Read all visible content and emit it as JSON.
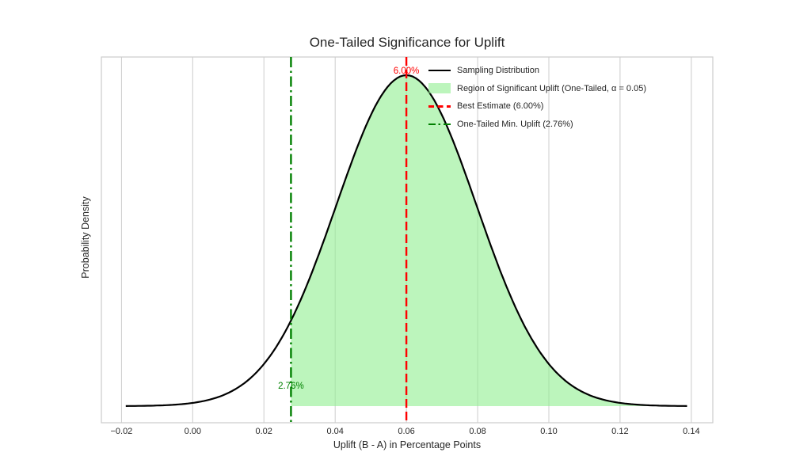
{
  "figure": {
    "background": "#ffffff"
  },
  "chart_data": {
    "type": "area",
    "title": "One-Tailed Significance for Uplift",
    "xlabel": "Uplift (B - A) in Percentage Points",
    "ylabel": "Probability Density",
    "x_ticks": [
      -0.02,
      0.0,
      0.02,
      0.04,
      0.06,
      0.08,
      0.1,
      0.12,
      0.14
    ],
    "x_tick_labels": [
      "−0.02",
      "0.00",
      "0.02",
      "0.04",
      "0.06",
      "0.08",
      "0.10",
      "0.12",
      "0.14"
    ],
    "xlim": [
      -0.02564,
      0.14603
    ],
    "grid": "vertical-only",
    "legend_position": "upper right, frameless",
    "distribution": {
      "shape": "normal",
      "mean": 0.06,
      "sigma": 0.0197,
      "x_start": -0.0188,
      "x_end": 0.1388
    },
    "significance_region": {
      "from": 0.0276,
      "to": 0.1388,
      "alpha": 0.05
    },
    "best_estimate": {
      "value": 0.06,
      "annotation": "6.00%"
    },
    "min_uplift": {
      "value": 0.0276,
      "annotation": "2.76%"
    },
    "legend": [
      {
        "label": "Sampling Distribution",
        "marker": "line",
        "color": "#000000"
      },
      {
        "label": "Region of Significant Uplift (One-Tailed, α = 0.05)",
        "marker": "patch",
        "color": "#90EE90"
      },
      {
        "label": "Best Estimate (6.00%)",
        "marker": "dashed-line",
        "color": "#FF0000"
      },
      {
        "label": "One-Tailed Min. Uplift (2.76%)",
        "marker": "dashdot-line",
        "color": "#008000"
      }
    ],
    "colors": {
      "curve": "#000000",
      "fill": "#90EE90",
      "fill_opacity": 0.6,
      "best": "#FF0000",
      "threshold": "#008000",
      "grid": "#CCCCCC",
      "spine": "#CCCCCC",
      "text": "#262626"
    }
  }
}
